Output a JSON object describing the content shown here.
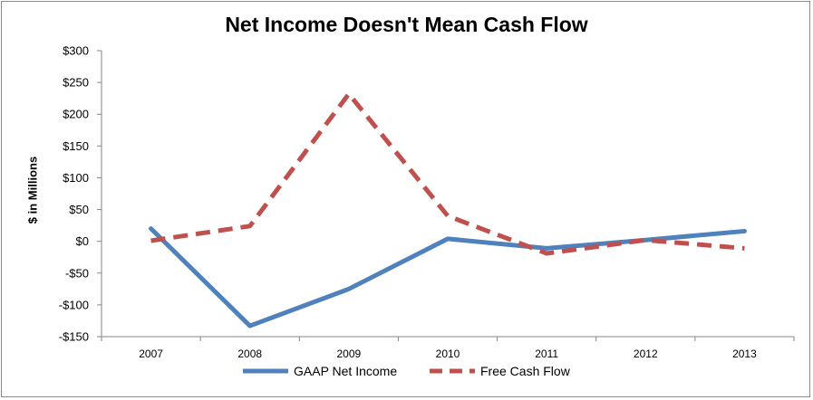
{
  "chart_data": {
    "type": "line",
    "title": "Net Income Doesn't Mean Cash Flow",
    "xlabel": "",
    "ylabel": "$ in Millions",
    "categories": [
      "2007",
      "2008",
      "2009",
      "2010",
      "2011",
      "2012",
      "2013"
    ],
    "ylim": [
      -150,
      300
    ],
    "yticks": [
      300,
      250,
      200,
      150,
      100,
      50,
      0,
      -50,
      -100,
      -150
    ],
    "ytick_labels": [
      "$300",
      "$250",
      "$200",
      "$150",
      "$100",
      "$50",
      "$0",
      "-$50",
      "-$100",
      "-$150"
    ],
    "grid": false,
    "legend_position": "bottom",
    "series": [
      {
        "name": "GAAP Net Income",
        "values": [
          20,
          -133,
          -75,
          4,
          -11,
          2,
          16
        ],
        "color": "#4f81bd",
        "style": "solid"
      },
      {
        "name": "Free Cash Flow",
        "values": [
          1,
          24,
          232,
          40,
          -19,
          2,
          -11
        ],
        "color": "#c0504d",
        "style": "dashed"
      }
    ]
  }
}
